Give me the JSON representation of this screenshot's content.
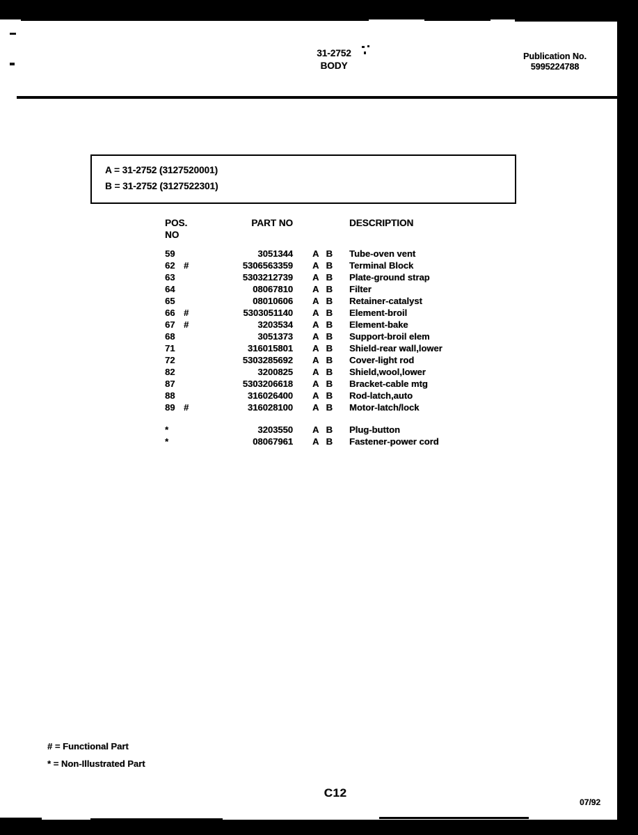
{
  "header": {
    "doc_number": "31-2752",
    "section": "BODY",
    "publication_label": "Publication No.",
    "publication_number": "5995224788"
  },
  "model_box": {
    "line_a": "A = 31-2752 (3127520001)",
    "line_b": "B = 31-2752 (3127522301)"
  },
  "parts_table": {
    "headers": {
      "pos": "POS. NO",
      "part": "PART NO",
      "desc": "DESCRIPTION"
    },
    "rows": [
      {
        "pos": "59",
        "flag": "",
        "part": "3051344",
        "models": "A B",
        "desc": "Tube-oven vent"
      },
      {
        "pos": "62",
        "flag": "#",
        "part": "5306563359",
        "models": "A B",
        "desc": "Terminal Block"
      },
      {
        "pos": "63",
        "flag": "",
        "part": "5303212739",
        "models": "A B",
        "desc": "Plate-ground strap"
      },
      {
        "pos": "64",
        "flag": "",
        "part": "08067810",
        "models": "A B",
        "desc": "Filter"
      },
      {
        "pos": "65",
        "flag": "",
        "part": "08010606",
        "models": "A B",
        "desc": "Retainer-catalyst"
      },
      {
        "pos": "66",
        "flag": "#",
        "part": "5303051140",
        "models": "A B",
        "desc": "Element-broil"
      },
      {
        "pos": "67",
        "flag": "#",
        "part": "3203534",
        "models": "A B",
        "desc": "Element-bake"
      },
      {
        "pos": "68",
        "flag": "",
        "part": "3051373",
        "models": "A B",
        "desc": "Support-broil elem"
      },
      {
        "pos": "71",
        "flag": "",
        "part": "316015801",
        "models": "A B",
        "desc": "Shield-rear wall,lower"
      },
      {
        "pos": "72",
        "flag": "",
        "part": "5303285692",
        "models": "A B",
        "desc": "Cover-light rod"
      },
      {
        "pos": "82",
        "flag": "",
        "part": "3200825",
        "models": "A B",
        "desc": "Shield,wool,lower"
      },
      {
        "pos": "87",
        "flag": "",
        "part": "5303206618",
        "models": "A B",
        "desc": "Bracket-cable mtg"
      },
      {
        "pos": "88",
        "flag": "",
        "part": "316026400",
        "models": "A B",
        "desc": "Rod-latch,auto"
      },
      {
        "pos": "89",
        "flag": "#",
        "part": "316028100",
        "models": "A B",
        "desc": "Motor-latch/lock"
      }
    ],
    "extra_rows": [
      {
        "pos": "*",
        "flag": "",
        "part": "3203550",
        "models": "A B",
        "desc": "Plug-button"
      },
      {
        "pos": "*",
        "flag": "",
        "part": "08067961",
        "models": "A B",
        "desc": "Fastener-power cord"
      }
    ]
  },
  "legend": {
    "functional": "# = Functional Part",
    "non_illustrated": "* = Non-Illustrated Part"
  },
  "footer": {
    "page_number": "C12",
    "date_code": "07/92"
  }
}
